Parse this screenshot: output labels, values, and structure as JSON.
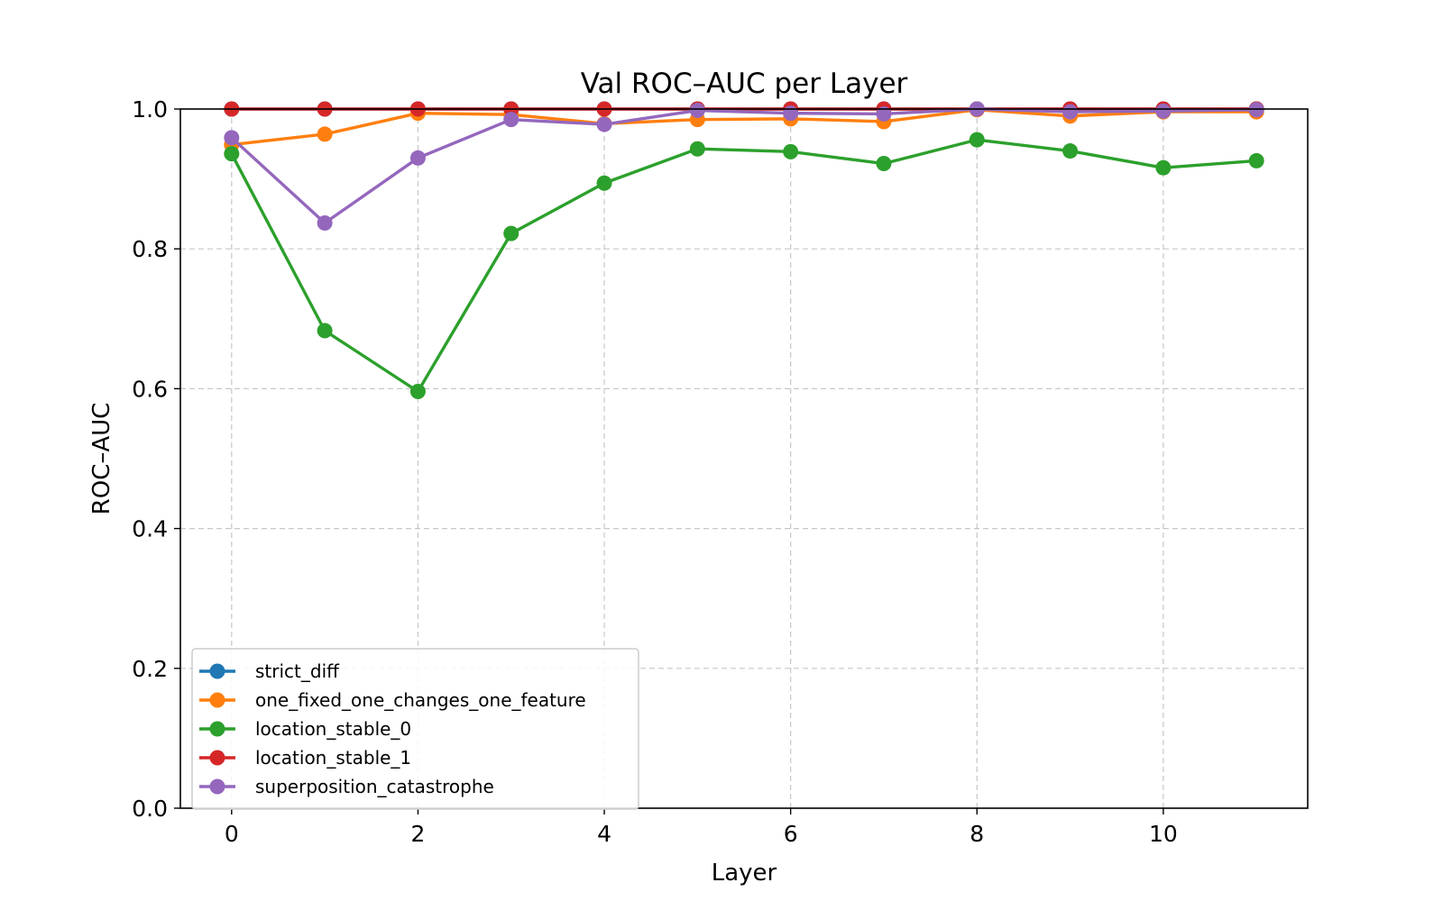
{
  "chart_data": {
    "type": "line",
    "title": "Val ROC–AUC per Layer",
    "xlabel": "Layer",
    "ylabel": "ROC–AUC",
    "xlim": [
      -0.55,
      11.55
    ],
    "ylim": [
      0.0,
      1.0
    ],
    "xticks": [
      0,
      2,
      4,
      6,
      8,
      10
    ],
    "yticks": [
      0.0,
      0.2,
      0.4,
      0.6,
      0.8,
      1.0
    ],
    "xtick_labels": [
      "0",
      "2",
      "4",
      "6",
      "8",
      "10"
    ],
    "ytick_labels": [
      "0.0",
      "0.2",
      "0.4",
      "0.6",
      "0.8",
      "1.0"
    ],
    "grid": true,
    "legend_position": "lower-left",
    "x": [
      0,
      1,
      2,
      3,
      4,
      5,
      6,
      7,
      8,
      9,
      10,
      11
    ],
    "series": [
      {
        "name": "strict_diff",
        "color": "#1f77b4",
        "values": [
          1.0,
          1.0,
          1.0,
          1.0,
          1.0,
          1.0,
          1.0,
          1.0,
          1.0,
          1.0,
          1.0,
          1.0
        ]
      },
      {
        "name": "one_fixed_one_changes_one_feature",
        "color": "#ff7f0e",
        "values": [
          0.949,
          0.964,
          0.994,
          0.992,
          0.979,
          0.985,
          0.986,
          0.982,
          0.999,
          0.99,
          0.996,
          0.996
        ]
      },
      {
        "name": "location_stable_0",
        "color": "#2ca02c",
        "values": [
          0.936,
          0.683,
          0.596,
          0.822,
          0.894,
          0.943,
          0.939,
          0.922,
          0.956,
          0.94,
          0.916,
          0.926
        ]
      },
      {
        "name": "location_stable_1",
        "color": "#d62728",
        "values": [
          1.0,
          1.0,
          1.0,
          1.0,
          1.0,
          1.0,
          1.0,
          1.0,
          1.0,
          1.0,
          1.0,
          1.0
        ]
      },
      {
        "name": "superposition_catastrophe",
        "color": "#9467bd",
        "values": [
          0.959,
          0.837,
          0.93,
          0.985,
          0.978,
          0.998,
          0.994,
          0.993,
          1.0,
          0.996,
          0.997,
          0.999
        ]
      }
    ]
  }
}
